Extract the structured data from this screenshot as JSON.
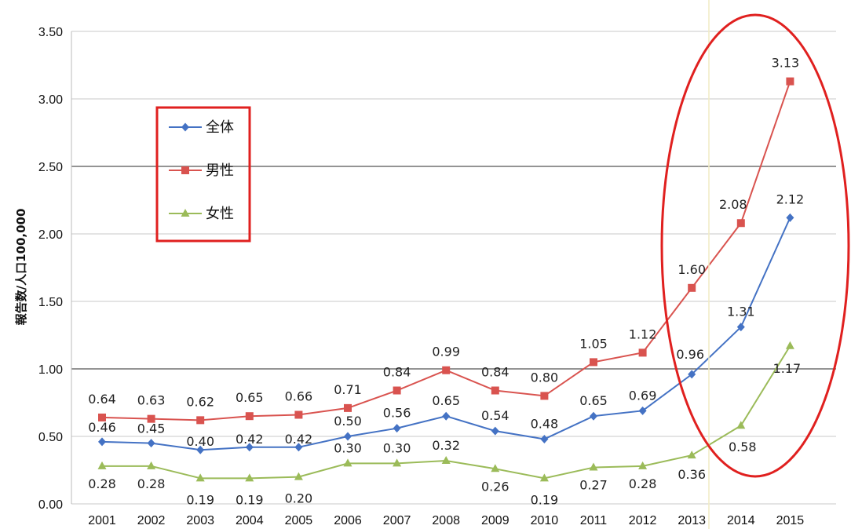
{
  "chart_data": {
    "type": "line",
    "title": "",
    "xlabel": "",
    "ylabel": "報告数/人口100,000",
    "categories": [
      "2001",
      "2002",
      "2003",
      "2004",
      "2005",
      "2006",
      "2007",
      "2008",
      "2009",
      "2010",
      "2011",
      "2012",
      "2013",
      "2014",
      "2015"
    ],
    "ylim": [
      0,
      3.5
    ],
    "yticks": [
      "0.00",
      "0.50",
      "1.00",
      "1.50",
      "2.00",
      "2.50",
      "3.00",
      "3.50"
    ],
    "grid": true,
    "legend_position": "upper-left",
    "series": [
      {
        "name": "全体",
        "color": "#4472c4",
        "marker": "diamond",
        "values": [
          0.46,
          0.45,
          0.4,
          0.42,
          0.42,
          0.5,
          0.56,
          0.65,
          0.54,
          0.48,
          0.65,
          0.69,
          0.96,
          1.31,
          2.12
        ]
      },
      {
        "name": "男性",
        "color": "#d9534f",
        "marker": "square",
        "values": [
          0.64,
          0.63,
          0.62,
          0.65,
          0.66,
          0.71,
          0.84,
          0.99,
          0.84,
          0.8,
          1.05,
          1.12,
          1.6,
          2.08,
          3.13
        ]
      },
      {
        "name": "女性",
        "color": "#9bbb59",
        "marker": "triangle",
        "values": [
          0.28,
          0.28,
          0.19,
          0.19,
          0.2,
          0.3,
          0.3,
          0.32,
          0.26,
          0.19,
          0.27,
          0.28,
          0.36,
          0.58,
          1.17
        ]
      }
    ],
    "annotations": [
      {
        "type": "red-box",
        "around": "legend"
      },
      {
        "type": "red-ellipse",
        "around": "2013-2015"
      }
    ]
  }
}
